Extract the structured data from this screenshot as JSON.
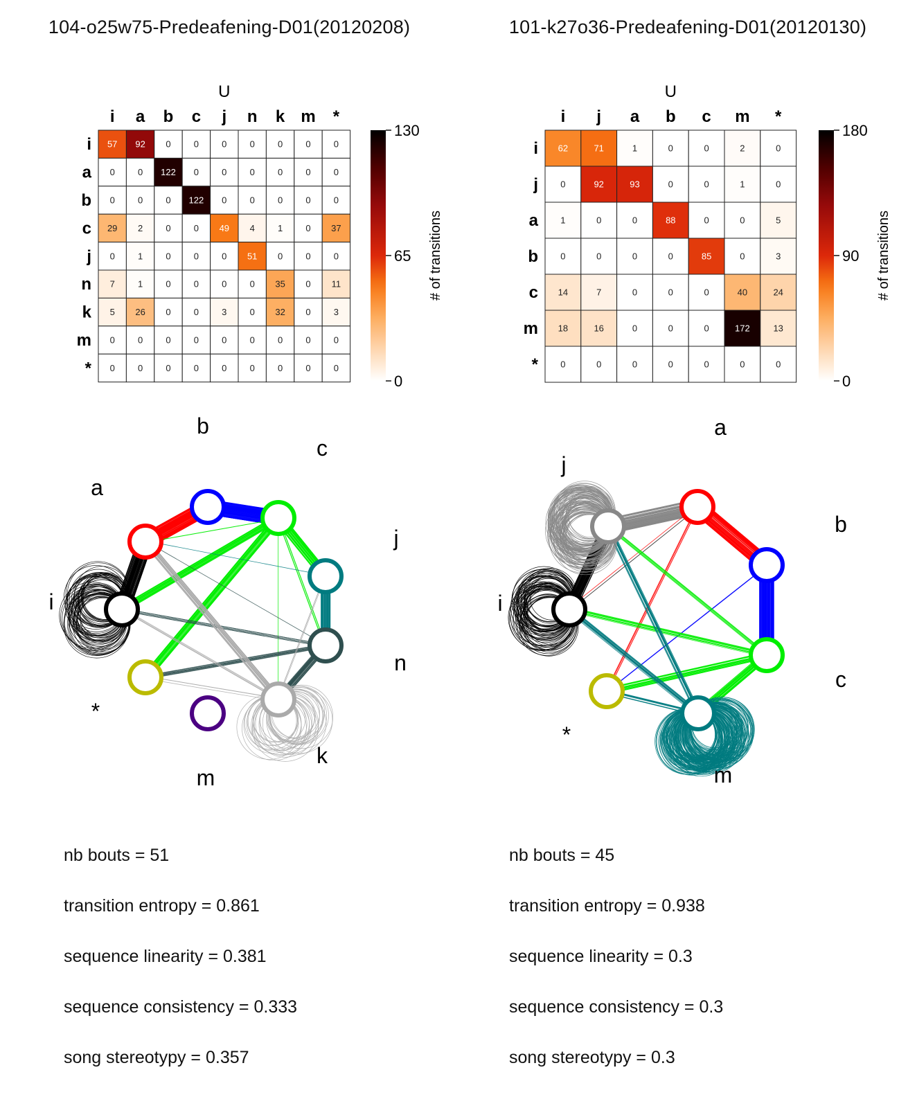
{
  "chart_data": [
    {
      "type": "heatmap",
      "title": "104-o25w75-Predeafening-D01(20120208)",
      "xlabel": "U",
      "colorbar": {
        "label": "# of transitions",
        "ticks": [
          "130",
          "65",
          "0"
        ],
        "range": [
          0,
          130
        ]
      },
      "columns": [
        "i",
        "a",
        "b",
        "c",
        "j",
        "n",
        "k",
        "m",
        "*"
      ],
      "rows": [
        "i",
        "a",
        "b",
        "c",
        "j",
        "n",
        "k",
        "m",
        "*"
      ],
      "values": [
        [
          57,
          92,
          0,
          0,
          0,
          0,
          0,
          0,
          0
        ],
        [
          0,
          0,
          122,
          0,
          0,
          0,
          0,
          0,
          0
        ],
        [
          0,
          0,
          0,
          122,
          0,
          0,
          0,
          0,
          0
        ],
        [
          29,
          2,
          0,
          0,
          49,
          4,
          1,
          0,
          37
        ],
        [
          0,
          1,
          0,
          0,
          0,
          51,
          0,
          0,
          0
        ],
        [
          7,
          1,
          0,
          0,
          0,
          0,
          35,
          0,
          11
        ],
        [
          5,
          26,
          0,
          0,
          3,
          0,
          32,
          0,
          3
        ],
        [
          0,
          0,
          0,
          0,
          0,
          0,
          0,
          0,
          0
        ],
        [
          0,
          0,
          0,
          0,
          0,
          0,
          0,
          0,
          0
        ]
      ],
      "network": {
        "type": "network",
        "nodes": [
          {
            "id": "i",
            "label": "i",
            "color": "#000000"
          },
          {
            "id": "a",
            "label": "a",
            "color": "#ff0000"
          },
          {
            "id": "b",
            "label": "b",
            "color": "#0000ff"
          },
          {
            "id": "c",
            "label": "c",
            "color": "#00ee00"
          },
          {
            "id": "j",
            "label": "j",
            "color": "#007b80"
          },
          {
            "id": "n",
            "label": "n",
            "color": "#2f4f4f"
          },
          {
            "id": "k",
            "label": "k",
            "color": "#aaaaaa"
          },
          {
            "id": "m",
            "label": "m",
            "color": "#4b0082"
          },
          {
            "id": "*",
            "label": "*",
            "color": "#bbbb00"
          }
        ]
      },
      "stats": [
        "nb bouts = 51",
        "transition entropy = 0.861",
        "sequence linearity = 0.381",
        "sequence consistency = 0.333",
        "song stereotypy = 0.357"
      ]
    },
    {
      "type": "heatmap",
      "title": "101-k27o36-Predeafening-D01(20120130)",
      "xlabel": "U",
      "colorbar": {
        "label": "# of transitions",
        "ticks": [
          "180",
          "90",
          "0"
        ],
        "range": [
          0,
          180
        ]
      },
      "columns": [
        "i",
        "j",
        "a",
        "b",
        "c",
        "m",
        "*"
      ],
      "rows": [
        "i",
        "j",
        "a",
        "b",
        "c",
        "m",
        "*"
      ],
      "values": [
        [
          62,
          71,
          1,
          0,
          0,
          2,
          0
        ],
        [
          0,
          92,
          93,
          0,
          0,
          1,
          0
        ],
        [
          1,
          0,
          0,
          88,
          0,
          0,
          5
        ],
        [
          0,
          0,
          0,
          0,
          85,
          0,
          3
        ],
        [
          14,
          7,
          0,
          0,
          0,
          40,
          24
        ],
        [
          18,
          16,
          0,
          0,
          0,
          172,
          13
        ],
        [
          0,
          0,
          0,
          0,
          0,
          0,
          0
        ]
      ],
      "network": {
        "type": "network",
        "nodes": [
          {
            "id": "i",
            "label": "i",
            "color": "#000000"
          },
          {
            "id": "j",
            "label": "j",
            "color": "#888888"
          },
          {
            "id": "a",
            "label": "a",
            "color": "#ff0000"
          },
          {
            "id": "b",
            "label": "b",
            "color": "#0000ff"
          },
          {
            "id": "c",
            "label": "c",
            "color": "#00ee00"
          },
          {
            "id": "m",
            "label": "m",
            "color": "#007b80"
          },
          {
            "id": "*",
            "label": "*",
            "color": "#bbbb00"
          }
        ]
      },
      "stats": [
        "nb bouts = 45",
        "transition entropy = 0.938",
        "sequence linearity = 0.3",
        "sequence consistency = 0.3",
        "song stereotypy = 0.3"
      ]
    }
  ]
}
